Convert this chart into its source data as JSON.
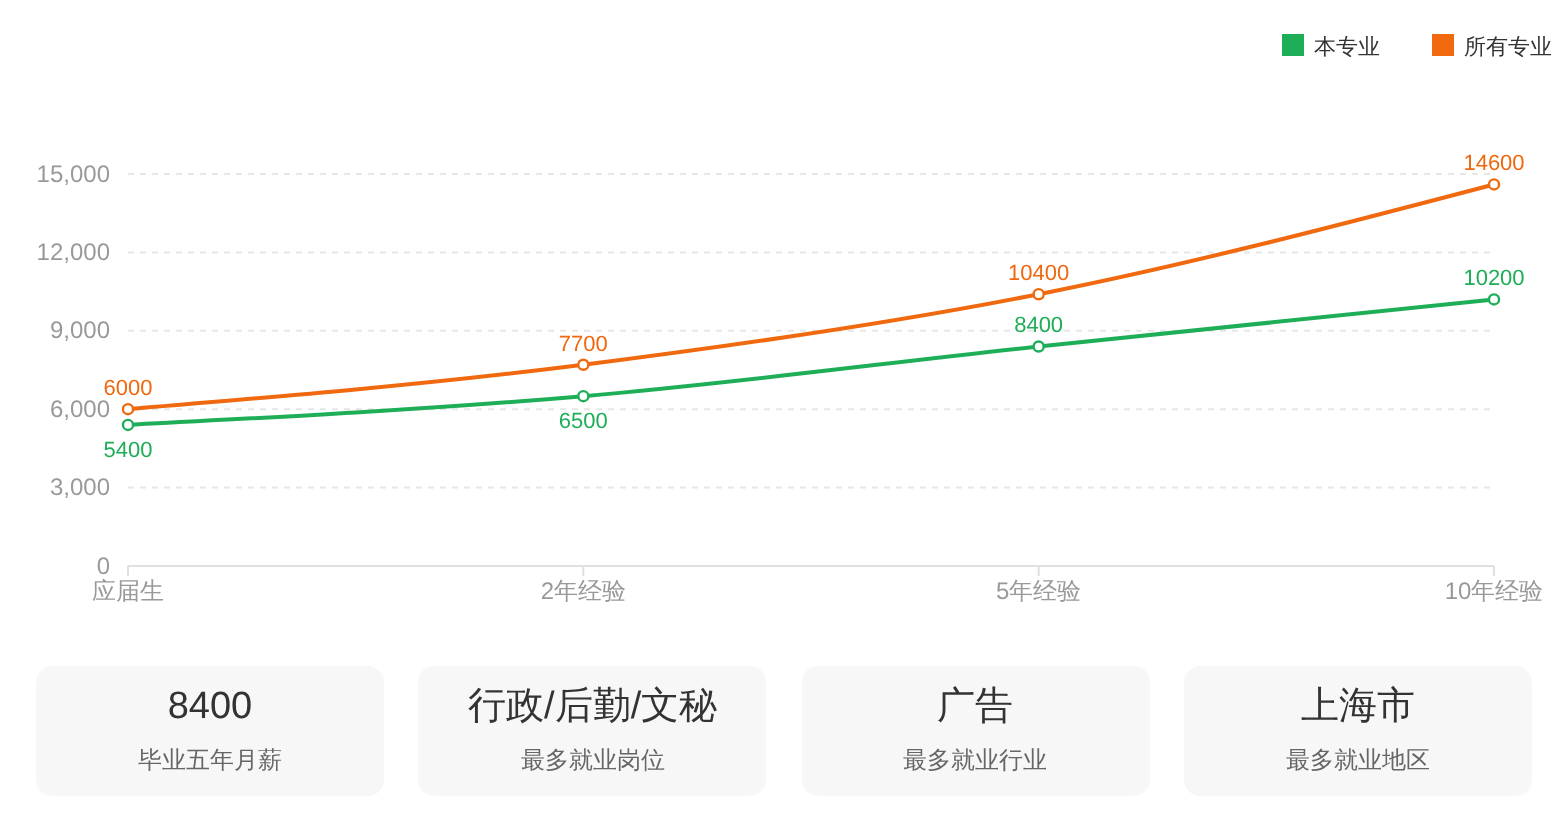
{
  "chart_data": [
    {
      "type": "line",
      "categories": [
        "应届生",
        "2年经验",
        "5年经验",
        "10年经验"
      ],
      "series": [
        {
          "name": "本专业",
          "color": "#1fae58",
          "values": [
            5400,
            6500,
            8400,
            10200
          ]
        },
        {
          "name": "所有专业",
          "color": "#f0690f",
          "values": [
            6000,
            7700,
            10400,
            14600
          ]
        }
      ],
      "ylim": [
        0,
        15000
      ],
      "yticks": [
        {
          "value": 0,
          "label": "0"
        },
        {
          "value": 3000,
          "label": "3,000"
        },
        {
          "value": 6000,
          "label": "6,000"
        },
        {
          "value": 9000,
          "label": "9,000"
        },
        {
          "value": 12000,
          "label": "12,000"
        },
        {
          "value": 15000,
          "label": "15,000"
        }
      ],
      "grid": "y",
      "legend": "top right",
      "marker": "circle",
      "line_style": "solid",
      "data_labels": true
    },
    {
      "type": "other",
      "annotations": [
        "8400",
        "毕业五年月薪",
        "行政/后勤/文秘",
        "最多就业岗位",
        "广告",
        "最多就业行业",
        "上海市",
        "最多就业地区"
      ]
    }
  ]
}
